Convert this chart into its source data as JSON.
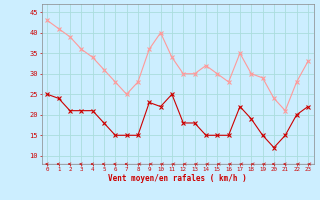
{
  "hours": [
    0,
    1,
    2,
    3,
    4,
    5,
    6,
    7,
    8,
    9,
    10,
    11,
    12,
    13,
    14,
    15,
    16,
    17,
    18,
    19,
    20,
    21,
    22,
    23
  ],
  "wind_avg": [
    25,
    24,
    21,
    21,
    21,
    18,
    15,
    15,
    15,
    23,
    22,
    25,
    18,
    18,
    15,
    15,
    15,
    22,
    19,
    15,
    12,
    15,
    20,
    22
  ],
  "wind_gust": [
    43,
    41,
    39,
    36,
    34,
    31,
    28,
    25,
    28,
    36,
    40,
    34,
    30,
    30,
    32,
    30,
    28,
    35,
    30,
    29,
    24,
    21,
    28,
    33
  ],
  "avg_color": "#cc0000",
  "gust_color": "#ff9999",
  "bg_color": "#cceeff",
  "grid_color": "#aadddd",
  "xlabel": "Vent moyen/en rafales ( km/h )",
  "xlabel_color": "#cc0000",
  "yticks": [
    10,
    15,
    20,
    25,
    30,
    35,
    40,
    45
  ],
  "ylim": [
    8,
    47
  ],
  "xlim": [
    -0.5,
    23.5
  ],
  "arrow_angles_deg": [
    225,
    225,
    225,
    225,
    225,
    225,
    225,
    225,
    180,
    180,
    180,
    180,
    180,
    180,
    180,
    180,
    180,
    180,
    180,
    180,
    225,
    225,
    180,
    180
  ]
}
